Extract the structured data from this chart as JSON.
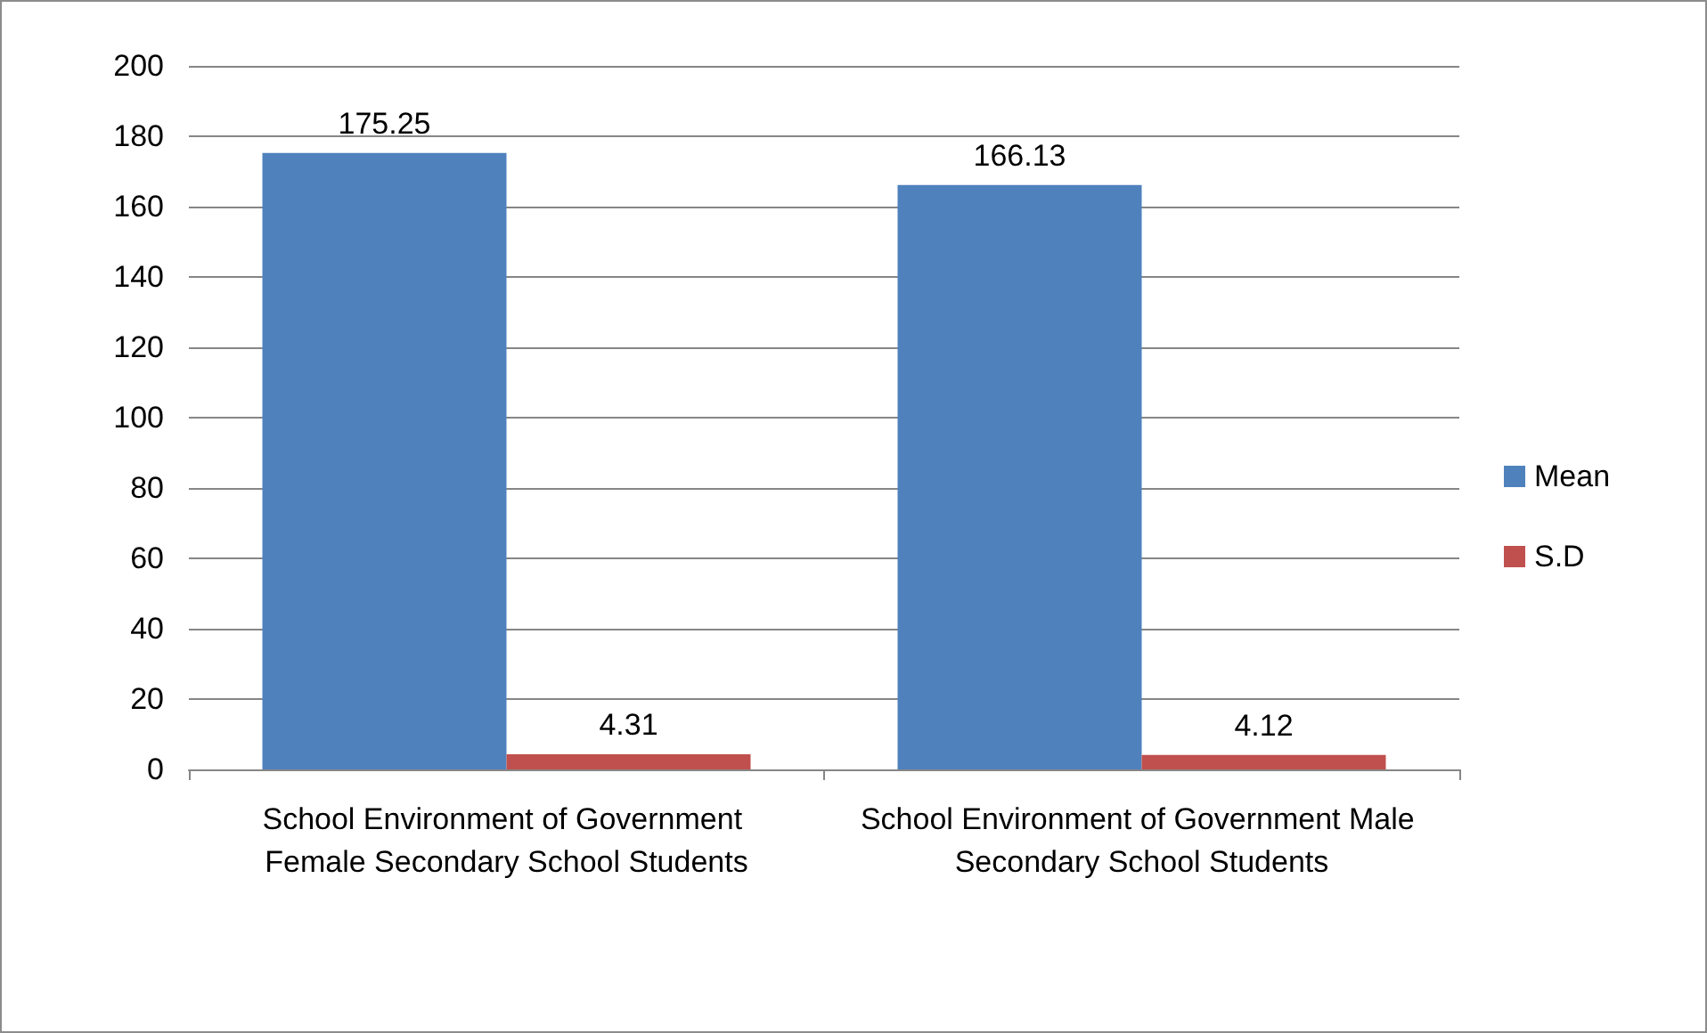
{
  "chart_data": {
    "type": "bar",
    "categories": [
      "School Environment of Government Female Secondary School Students",
      "School Environment of Government Male Secondary School Students"
    ],
    "series": [
      {
        "name": "Mean",
        "color": "#4f81bd",
        "values": [
          175.25,
          166.13
        ]
      },
      {
        "name": "S.D",
        "color": "#c0504d",
        "values": [
          4.31,
          4.12
        ]
      }
    ],
    "ylim": [
      0,
      200
    ],
    "yticks": [
      0,
      20,
      40,
      60,
      80,
      100,
      120,
      140,
      160,
      180,
      200
    ],
    "grid": "y",
    "legend": "right",
    "data_labels": true
  }
}
